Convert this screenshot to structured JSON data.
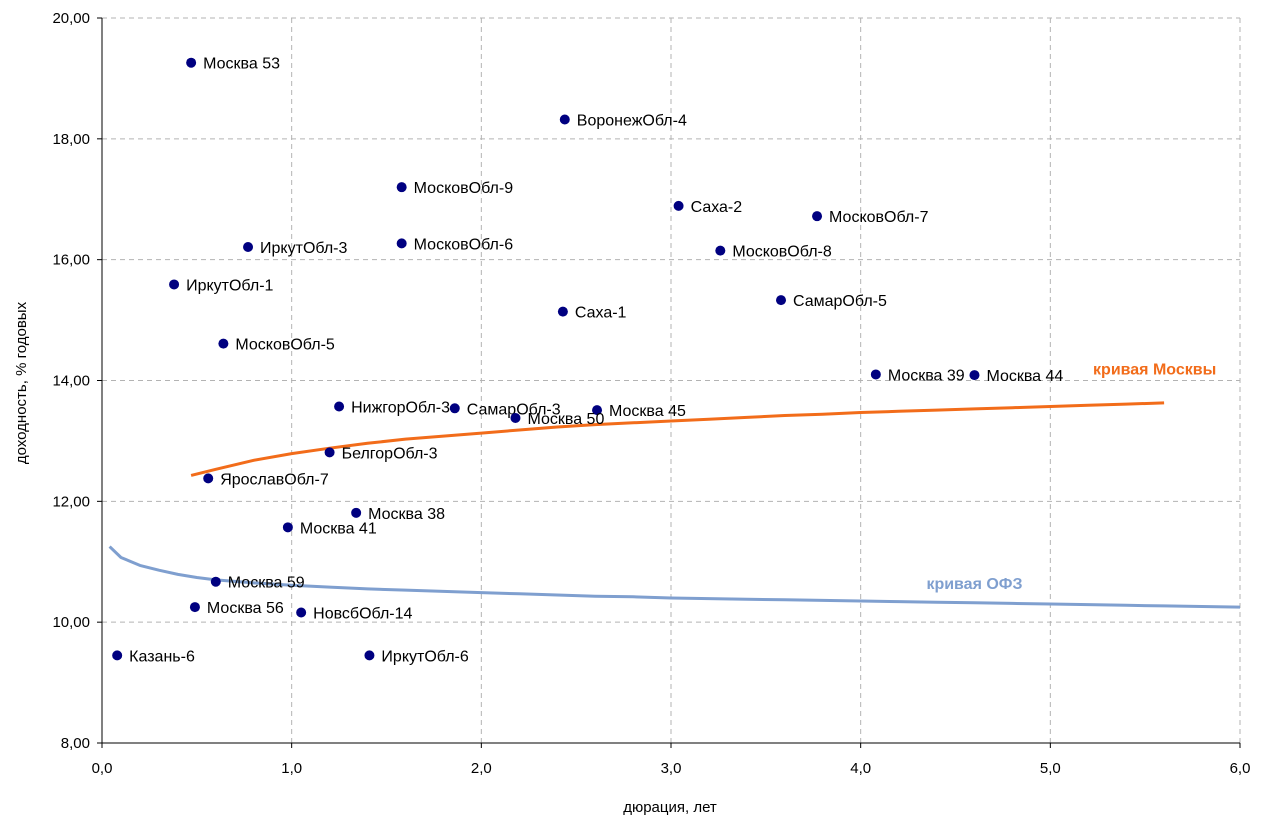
{
  "chart_data": {
    "type": "scatter",
    "xlabel": "дюрация, лет",
    "ylabel": "доходность, % годовых",
    "xlim": [
      0,
      6
    ],
    "ylim": [
      8,
      20
    ],
    "x_ticks": [
      "0,0",
      "1,0",
      "2,0",
      "3,0",
      "4,0",
      "5,0",
      "6,0"
    ],
    "y_ticks": [
      "8,00",
      "10,00",
      "12,00",
      "14,00",
      "16,00",
      "18,00",
      "20,00"
    ],
    "grid": true,
    "point_color": "#000080",
    "points": [
      {
        "label": "Москва 53",
        "x": 0.47,
        "y": 19.26
      },
      {
        "label": "ВоронежОбл-4",
        "x": 2.44,
        "y": 18.32
      },
      {
        "label": "МосковОбл-9",
        "x": 1.58,
        "y": 17.2
      },
      {
        "label": "Саха-2",
        "x": 3.04,
        "y": 16.89
      },
      {
        "label": "МосковОбл-7",
        "x": 3.77,
        "y": 16.72
      },
      {
        "label": "ИркутОбл-3",
        "x": 0.77,
        "y": 16.21
      },
      {
        "label": "МосковОбл-6",
        "x": 1.58,
        "y": 16.27
      },
      {
        "label": "МосковОбл-8",
        "x": 3.26,
        "y": 16.15
      },
      {
        "label": "ИркутОбл-1",
        "x": 0.38,
        "y": 15.59
      },
      {
        "label": "СамарОбл-5",
        "x": 3.58,
        "y": 15.33
      },
      {
        "label": "Саха-1",
        "x": 2.43,
        "y": 15.14
      },
      {
        "label": "МосковОбл-5",
        "x": 0.64,
        "y": 14.61
      },
      {
        "label": "Москва 39",
        "x": 4.08,
        "y": 14.1
      },
      {
        "label": "Москва 44",
        "x": 4.6,
        "y": 14.09
      },
      {
        "label": "НижгорОбл-3",
        "x": 1.25,
        "y": 13.57
      },
      {
        "label": "СамарОбл-3",
        "x": 1.86,
        "y": 13.54
      },
      {
        "label": "Москва 45",
        "x": 2.61,
        "y": 13.51
      },
      {
        "label": "Москва 50",
        "x": 2.18,
        "y": 13.38
      },
      {
        "label": "БелгорОбл-3",
        "x": 1.2,
        "y": 12.81
      },
      {
        "label": "ЯрославОбл-7",
        "x": 0.56,
        "y": 12.38
      },
      {
        "label": "Москва 38",
        "x": 1.34,
        "y": 11.81
      },
      {
        "label": "Москва 41",
        "x": 0.98,
        "y": 11.57
      },
      {
        "label": "Москва 59",
        "x": 0.6,
        "y": 10.67
      },
      {
        "label": "Москва 56",
        "x": 0.49,
        "y": 10.25
      },
      {
        "label": "НовсбОбл-14",
        "x": 1.05,
        "y": 10.16
      },
      {
        "label": "Казань-6",
        "x": 0.08,
        "y": 9.45
      },
      {
        "label": "ИркутОбл-6",
        "x": 1.41,
        "y": 9.45
      }
    ],
    "series": [
      {
        "name": "кривая Москвы",
        "color": "#f26c1a",
        "x": [
          0.47,
          0.6,
          0.8,
          1.0,
          1.2,
          1.4,
          1.6,
          1.8,
          2.0,
          2.2,
          2.4,
          2.6,
          2.8,
          3.0,
          3.2,
          3.4,
          3.6,
          3.8,
          4.0,
          4.2,
          4.4,
          4.6,
          4.8,
          5.0,
          5.2,
          5.4,
          5.6
        ],
        "y": [
          12.43,
          12.53,
          12.68,
          12.79,
          12.88,
          12.96,
          13.03,
          13.08,
          13.13,
          13.18,
          13.23,
          13.27,
          13.3,
          13.33,
          13.36,
          13.39,
          13.42,
          13.44,
          13.47,
          13.49,
          13.51,
          13.53,
          13.55,
          13.57,
          13.59,
          13.61,
          13.63
        ]
      },
      {
        "name": "кривая ОФЗ",
        "color": "#7f9fcf",
        "x": [
          0.04,
          0.1,
          0.2,
          0.3,
          0.4,
          0.5,
          0.6,
          0.8,
          1.0,
          1.2,
          1.4,
          1.6,
          1.8,
          2.0,
          2.2,
          2.4,
          2.6,
          2.8,
          3.0,
          3.2,
          3.4,
          3.6,
          3.8,
          4.0,
          4.2,
          4.4,
          4.6,
          4.8,
          5.0,
          5.2,
          5.4,
          5.6,
          5.8,
          6.0
        ],
        "y": [
          11.25,
          11.07,
          10.94,
          10.86,
          10.79,
          10.74,
          10.7,
          10.65,
          10.61,
          10.58,
          10.55,
          10.53,
          10.51,
          10.49,
          10.47,
          10.45,
          10.43,
          10.42,
          10.4,
          10.39,
          10.38,
          10.37,
          10.36,
          10.35,
          10.34,
          10.33,
          10.32,
          10.31,
          10.3,
          10.29,
          10.28,
          10.27,
          10.26,
          10.25
        ]
      }
    ]
  }
}
